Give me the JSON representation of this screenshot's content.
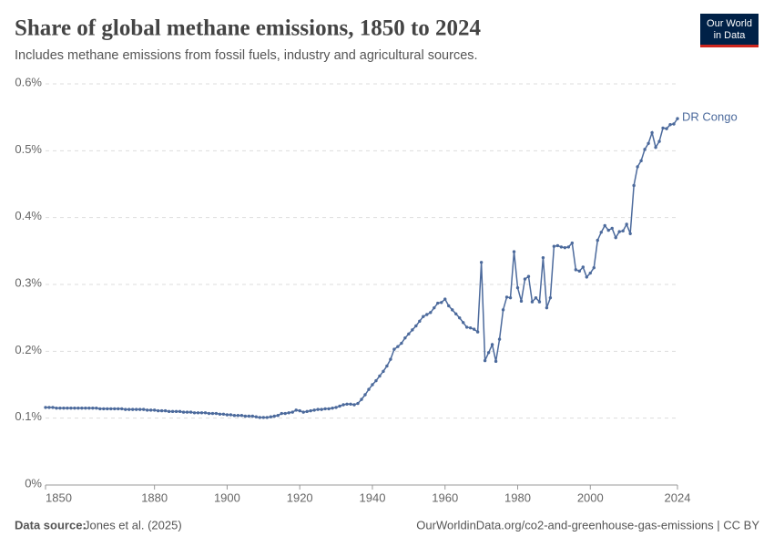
{
  "chart_data": {
    "type": "line",
    "title": "Share of global methane emissions, 1850 to 2024",
    "subtitle": "Includes methane emissions from fossil fuels, industry and agricultural sources.",
    "logo": [
      "Our World",
      "in Data"
    ],
    "source_label": "Data source:",
    "source": "Jones et al. (2025)",
    "footer_right": "OurWorldinData.org/co2-and-greenhouse-gas-emissions | CC BY",
    "x": [
      1850,
      1851,
      1852,
      1853,
      1854,
      1855,
      1856,
      1857,
      1858,
      1859,
      1860,
      1861,
      1862,
      1863,
      1864,
      1865,
      1866,
      1867,
      1868,
      1869,
      1870,
      1871,
      1872,
      1873,
      1874,
      1875,
      1876,
      1877,
      1878,
      1879,
      1880,
      1881,
      1882,
      1883,
      1884,
      1885,
      1886,
      1887,
      1888,
      1889,
      1890,
      1891,
      1892,
      1893,
      1894,
      1895,
      1896,
      1897,
      1898,
      1899,
      1900,
      1901,
      1902,
      1903,
      1904,
      1905,
      1906,
      1907,
      1908,
      1909,
      1910,
      1911,
      1912,
      1913,
      1914,
      1915,
      1916,
      1917,
      1918,
      1919,
      1920,
      1921,
      1922,
      1923,
      1924,
      1925,
      1926,
      1927,
      1928,
      1929,
      1930,
      1931,
      1932,
      1933,
      1934,
      1935,
      1936,
      1937,
      1938,
      1939,
      1940,
      1941,
      1942,
      1943,
      1944,
      1945,
      1946,
      1947,
      1948,
      1949,
      1950,
      1951,
      1952,
      1953,
      1954,
      1955,
      1956,
      1957,
      1958,
      1959,
      1960,
      1961,
      1962,
      1963,
      1964,
      1965,
      1966,
      1967,
      1968,
      1969,
      1970,
      1971,
      1972,
      1973,
      1974,
      1975,
      1976,
      1977,
      1978,
      1979,
      1980,
      1981,
      1982,
      1983,
      1984,
      1985,
      1986,
      1987,
      1988,
      1989,
      1990,
      1991,
      1992,
      1993,
      1994,
      1995,
      1996,
      1997,
      1998,
      1999,
      2000,
      2001,
      2002,
      2003,
      2004,
      2005,
      2006,
      2007,
      2008,
      2009,
      2010,
      2011,
      2012,
      2013,
      2014,
      2015,
      2016,
      2017,
      2018,
      2019,
      2020,
      2021,
      2022,
      2023,
      2024
    ],
    "series": [
      {
        "name": "DR Congo",
        "color": "#4c6a9c",
        "values": [
          0.116,
          0.116,
          0.116,
          0.115,
          0.115,
          0.115,
          0.115,
          0.115,
          0.115,
          0.115,
          0.115,
          0.115,
          0.115,
          0.115,
          0.115,
          0.114,
          0.114,
          0.114,
          0.114,
          0.114,
          0.114,
          0.114,
          0.113,
          0.113,
          0.113,
          0.113,
          0.113,
          0.113,
          0.112,
          0.112,
          0.112,
          0.111,
          0.111,
          0.111,
          0.11,
          0.11,
          0.11,
          0.11,
          0.109,
          0.109,
          0.109,
          0.108,
          0.108,
          0.108,
          0.108,
          0.107,
          0.107,
          0.107,
          0.106,
          0.106,
          0.105,
          0.105,
          0.104,
          0.104,
          0.104,
          0.103,
          0.103,
          0.103,
          0.102,
          0.101,
          0.101,
          0.101,
          0.102,
          0.103,
          0.104,
          0.107,
          0.107,
          0.108,
          0.109,
          0.112,
          0.111,
          0.109,
          0.11,
          0.111,
          0.112,
          0.113,
          0.113,
          0.114,
          0.114,
          0.115,
          0.116,
          0.118,
          0.12,
          0.121,
          0.121,
          0.12,
          0.122,
          0.128,
          0.135,
          0.143,
          0.15,
          0.156,
          0.163,
          0.17,
          0.178,
          0.188,
          0.203,
          0.207,
          0.212,
          0.22,
          0.226,
          0.232,
          0.238,
          0.245,
          0.252,
          0.255,
          0.258,
          0.265,
          0.272,
          0.273,
          0.278,
          0.268,
          0.262,
          0.256,
          0.25,
          0.243,
          0.236,
          0.235,
          0.233,
          0.229,
          0.333,
          0.186,
          0.198,
          0.21,
          0.185,
          0.218,
          0.262,
          0.281,
          0.28,
          0.349,
          0.295,
          0.275,
          0.308,
          0.312,
          0.274,
          0.28,
          0.274,
          0.34,
          0.265,
          0.28,
          0.357,
          0.358,
          0.356,
          0.355,
          0.356,
          0.362,
          0.322,
          0.32,
          0.326,
          0.311,
          0.317,
          0.325,
          0.366,
          0.378,
          0.388,
          0.381,
          0.384,
          0.37,
          0.379,
          0.38,
          0.39,
          0.376,
          0.448,
          0.476,
          0.485,
          0.502,
          0.511,
          0.527,
          0.505,
          0.514,
          0.534,
          0.533,
          0.539,
          0.54,
          0.548
        ]
      }
    ],
    "xlim": [
      1850,
      2024
    ],
    "xticks": [
      1850,
      1880,
      1900,
      1920,
      1940,
      1960,
      1980,
      2000,
      2024
    ],
    "ylim": [
      0,
      0.6
    ],
    "yticks": [
      {
        "value": 0,
        "label": "0%"
      },
      {
        "value": 0.1,
        "label": "0.1%"
      },
      {
        "value": 0.2,
        "label": "0.2%"
      },
      {
        "value": 0.3,
        "label": "0.3%"
      },
      {
        "value": 0.4,
        "label": "0.4%"
      },
      {
        "value": 0.5,
        "label": "0.5%"
      },
      {
        "value": 0.6,
        "label": "0.6%"
      }
    ],
    "grid": true
  }
}
